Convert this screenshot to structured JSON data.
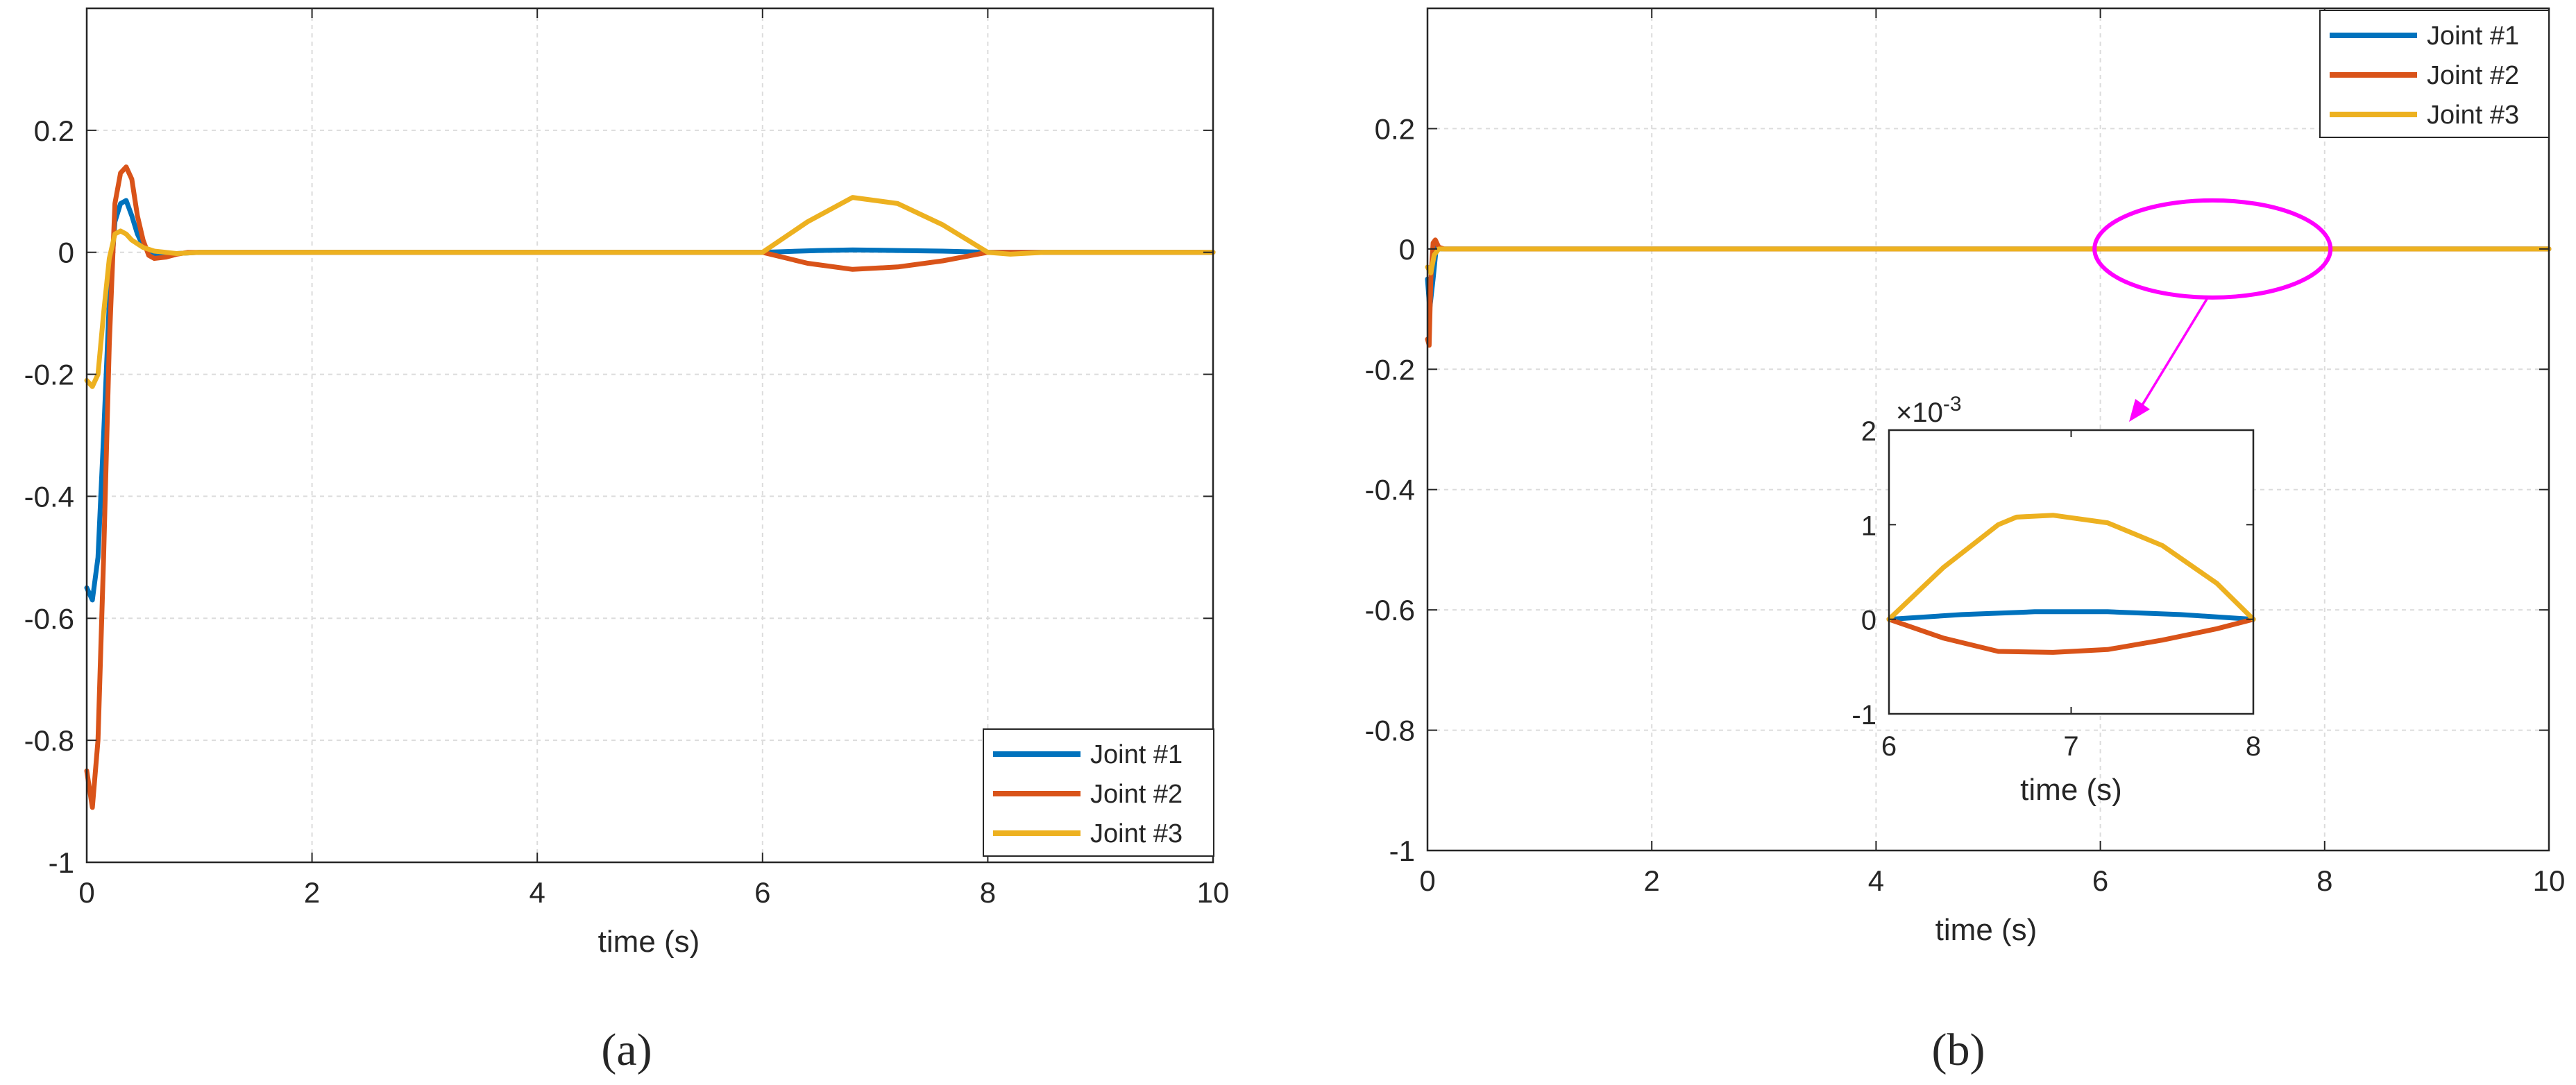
{
  "panels": [
    {
      "label": "(a)",
      "xlabel": "time (s)",
      "legend_entries": [
        "Joint #1",
        "Joint #2",
        "Joint #3"
      ]
    },
    {
      "label": "(b)",
      "xlabel": "time (s)",
      "legend_entries": [
        "Joint #1",
        "Joint #2",
        "Joint #3"
      ],
      "inset": {
        "xlabel": "time (s)",
        "exponent_label": "×10",
        "exponent_power": "-3"
      }
    }
  ],
  "chart_data": [
    {
      "type": "line",
      "title": "",
      "xlabel": "time (s)",
      "ylabel": "",
      "xlim": [
        0,
        10
      ],
      "ylim": [
        -1,
        0.4
      ],
      "xticks": [
        0,
        2,
        4,
        6,
        8,
        10
      ],
      "yticks": [
        -1,
        -0.8,
        -0.6,
        -0.4,
        -0.2,
        0,
        0.2
      ],
      "xtick_labels": [
        "0",
        "2",
        "4",
        "6",
        "8",
        "10"
      ],
      "ytick_labels": [
        "-1",
        "-0.8",
        "-0.6",
        "-0.4",
        "-0.2",
        "0",
        "0.2"
      ],
      "grid": true,
      "legend_position": "bottom-right",
      "series": [
        {
          "name": "Joint #1",
          "color": "#0072BD",
          "x": [
            0,
            0.05,
            0.1,
            0.15,
            0.2,
            0.25,
            0.3,
            0.35,
            0.4,
            0.45,
            0.5,
            0.6,
            0.7,
            0.8,
            1.0,
            1.5,
            6.0,
            6.5,
            6.8,
            7.2,
            7.6,
            8.0,
            8.5,
            10
          ],
          "y": [
            -0.55,
            -0.57,
            -0.5,
            -0.3,
            -0.08,
            0.05,
            0.08,
            0.085,
            0.06,
            0.03,
            0.01,
            -0.005,
            -0.005,
            -0.002,
            0,
            0,
            0,
            0.003,
            0.004,
            0.003,
            0.002,
            0,
            0,
            0
          ]
        },
        {
          "name": "Joint #2",
          "color": "#D95319",
          "x": [
            0,
            0.05,
            0.1,
            0.15,
            0.2,
            0.25,
            0.3,
            0.35,
            0.4,
            0.45,
            0.5,
            0.55,
            0.6,
            0.7,
            0.8,
            0.9,
            1.0,
            1.5,
            6.0,
            6.4,
            6.8,
            7.2,
            7.6,
            8.0,
            8.5,
            10
          ],
          "y": [
            -0.85,
            -0.91,
            -0.8,
            -0.5,
            -0.15,
            0.08,
            0.13,
            0.14,
            0.12,
            0.06,
            0.02,
            -0.005,
            -0.01,
            -0.008,
            -0.003,
            0,
            0,
            0,
            0,
            -0.018,
            -0.028,
            -0.024,
            -0.014,
            0,
            0,
            0
          ]
        },
        {
          "name": "Joint #3",
          "color": "#EDB120",
          "x": [
            0,
            0.05,
            0.1,
            0.15,
            0.2,
            0.25,
            0.3,
            0.35,
            0.4,
            0.5,
            0.6,
            0.7,
            0.8,
            1.0,
            1.5,
            6.0,
            6.4,
            6.8,
            7.2,
            7.6,
            8.0,
            8.2,
            8.5,
            10
          ],
          "y": [
            -0.21,
            -0.22,
            -0.2,
            -0.1,
            -0.01,
            0.03,
            0.035,
            0.03,
            0.02,
            0.008,
            0.002,
            0,
            -0.002,
            0,
            0,
            0,
            0.05,
            0.09,
            0.08,
            0.045,
            0,
            -0.003,
            0,
            0
          ]
        }
      ]
    },
    {
      "type": "line",
      "title": "",
      "xlabel": "time (s)",
      "ylabel": "",
      "xlim": [
        0,
        10
      ],
      "ylim": [
        -1,
        0.4
      ],
      "xticks": [
        0,
        2,
        4,
        6,
        8,
        10
      ],
      "yticks": [
        -1,
        -0.8,
        -0.6,
        -0.4,
        -0.2,
        0,
        0.2
      ],
      "xtick_labels": [
        "0",
        "2",
        "4",
        "6",
        "8",
        "10"
      ],
      "ytick_labels": [
        "-1",
        "-0.8",
        "-0.6",
        "-0.4",
        "-0.2",
        "0",
        "0.2"
      ],
      "grid": true,
      "legend_position": "top-right",
      "annotation": {
        "type": "ellipse",
        "x_center": 7.0,
        "y_center": 0,
        "color": "#FF00FF"
      },
      "series": [
        {
          "name": "Joint #1",
          "color": "#0072BD",
          "x": [
            0,
            0.02,
            0.05,
            0.08,
            0.12,
            0.2,
            10
          ],
          "y": [
            -0.05,
            -0.1,
            -0.05,
            0.005,
            0,
            0,
            0
          ]
        },
        {
          "name": "Joint #2",
          "color": "#D95319",
          "x": [
            0,
            0.015,
            0.03,
            0.05,
            0.07,
            0.1,
            0.15,
            0.2,
            10
          ],
          "y": [
            -0.15,
            -0.16,
            -0.05,
            0.01,
            0.015,
            0.003,
            0,
            0,
            0
          ]
        },
        {
          "name": "Joint #3",
          "color": "#EDB120",
          "x": [
            0,
            0.03,
            0.06,
            0.1,
            0.2,
            10
          ],
          "y": [
            -0.03,
            -0.04,
            -0.01,
            0,
            0,
            0
          ]
        }
      ],
      "inset": {
        "xlim": [
          6,
          8
        ],
        "ylim": [
          -1,
          2
        ],
        "y_scale_note": "×10^-3",
        "xticks": [
          6,
          7,
          8
        ],
        "yticks": [
          -1,
          0,
          1,
          2
        ],
        "xtick_labels": [
          "6",
          "7",
          "8"
        ],
        "ytick_labels": [
          "-1",
          "0",
          "1",
          "2"
        ],
        "xlabel": "time (s)",
        "series": [
          {
            "name": "Joint #1",
            "color": "#0072BD",
            "x": [
              6,
              6.4,
              6.8,
              7.2,
              7.6,
              8
            ],
            "y": [
              0,
              0.05,
              0.08,
              0.08,
              0.05,
              0
            ]
          },
          {
            "name": "Joint #2",
            "color": "#D95319",
            "x": [
              6,
              6.3,
              6.6,
              6.9,
              7.2,
              7.5,
              7.8,
              8
            ],
            "y": [
              0,
              -0.2,
              -0.34,
              -0.35,
              -0.32,
              -0.22,
              -0.1,
              0
            ]
          },
          {
            "name": "Joint #3",
            "color": "#EDB120",
            "x": [
              6,
              6.3,
              6.6,
              6.7,
              6.9,
              7.2,
              7.5,
              7.8,
              8
            ],
            "y": [
              0,
              0.55,
              1.0,
              1.08,
              1.1,
              1.02,
              0.78,
              0.38,
              0
            ]
          }
        ]
      }
    }
  ]
}
